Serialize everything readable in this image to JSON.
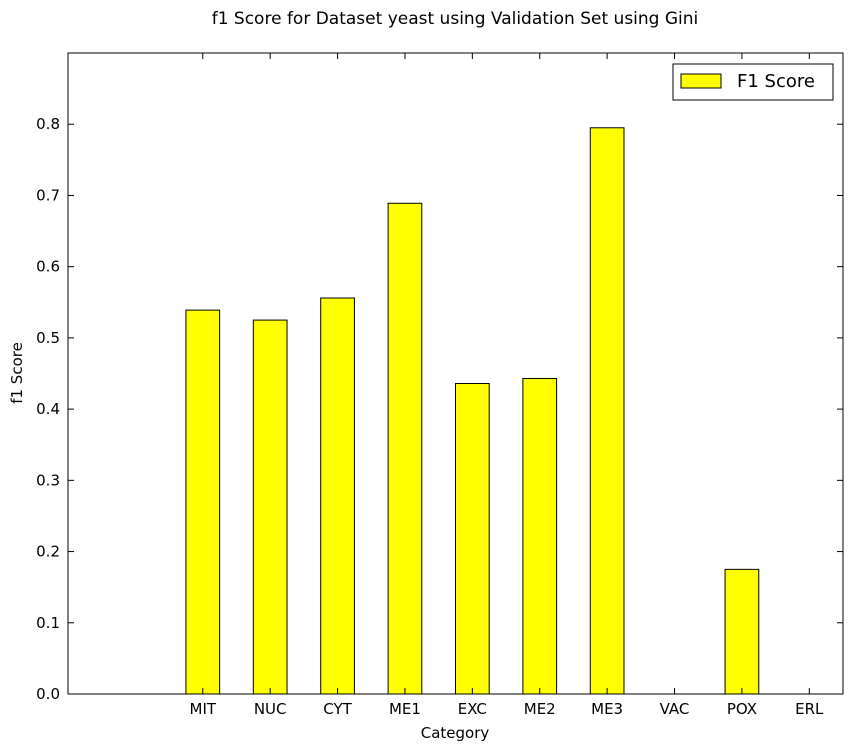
{
  "chart_data": {
    "type": "bar",
    "title": "f1 Score for Dataset yeast using Validation Set using Gini",
    "xlabel": "Category",
    "ylabel": "f1 Score",
    "categories": [
      "MIT",
      "NUC",
      "CYT",
      "ME1",
      "EXC",
      "ME2",
      "ME3",
      "VAC",
      "POX",
      "ERL"
    ],
    "series": [
      {
        "name": "F1 Score",
        "values": [
          0.539,
          0.525,
          0.556,
          0.689,
          0.436,
          0.443,
          0.795,
          0.0,
          0.175,
          0.0
        ]
      }
    ],
    "ylim": [
      0,
      0.9
    ],
    "yticks": [
      0.0,
      0.1,
      0.2,
      0.3,
      0.4,
      0.5,
      0.6,
      0.7,
      0.8
    ],
    "ytick_labels": [
      "0.0",
      "0.1",
      "0.2",
      "0.3",
      "0.4",
      "0.5",
      "0.6",
      "0.7",
      "0.8"
    ],
    "grid": false,
    "legend_position": "top-right",
    "colors": {
      "bar_fill": "#ffff00",
      "bar_edge": "#000000",
      "axis": "#000000"
    }
  }
}
